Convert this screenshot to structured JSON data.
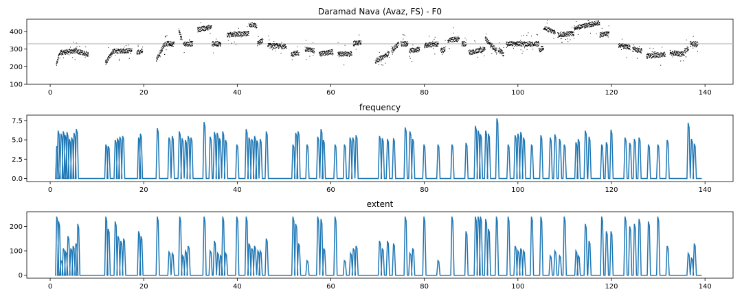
{
  "chart_data": [
    {
      "type": "scatter",
      "title": "Daramad Nava (Avaz, FS) - F0",
      "xlabel": "",
      "ylabel": "",
      "xlim": [
        -5,
        146
      ],
      "ylim": [
        100,
        470
      ],
      "xticks": [
        0,
        20,
        40,
        60,
        80,
        100,
        120,
        140
      ],
      "yticks": [
        100,
        200,
        300,
        400
      ],
      "reference_line": 330,
      "reference_line_color": "#bbbbbb",
      "point_color": "#000000",
      "series": [
        {
          "segments": [
            [
              1.3,
              210,
              2.2,
              290,
              1
            ],
            [
              2.2,
              280,
              5.5,
              290,
              1
            ],
            [
              5.5,
              290,
              8.2,
              270,
              1
            ],
            [
              11.8,
              220,
              13.5,
              290,
              1
            ],
            [
              13.5,
              290,
              17.5,
              290,
              1
            ],
            [
              18.5,
              280,
              19.8,
              290,
              1
            ],
            [
              22.7,
              240,
              24.5,
              330,
              1
            ],
            [
              24.5,
              330,
              26.5,
              330,
              1
            ],
            [
              27.5,
              410,
              28.2,
              350,
              1
            ],
            [
              28.5,
              330,
              30.5,
              330,
              1
            ],
            [
              31.5,
              410,
              34.5,
              425,
              1
            ],
            [
              34.6,
              330,
              36.5,
              330,
              1
            ],
            [
              37.8,
              380,
              42.5,
              390,
              1
            ],
            [
              42.5,
              440,
              44.2,
              430,
              1
            ],
            [
              44.3,
              330,
              45.5,
              350,
              1
            ],
            [
              46.5,
              320,
              50.5,
              315,
              1
            ],
            [
              51.5,
              270,
              53.2,
              280,
              1
            ],
            [
              54.5,
              300,
              56.5,
              290,
              1
            ],
            [
              57.5,
              270,
              60.5,
              285,
              1
            ],
            [
              61.5,
              270,
              64.5,
              275,
              1
            ],
            [
              64.8,
              330,
              66.5,
              340,
              1
            ],
            [
              69.5,
              230,
              72.5,
              275,
              1
            ],
            [
              73,
              290,
              74.5,
              330,
              1
            ],
            [
              75,
              330,
              76.5,
              330,
              1
            ],
            [
              76.8,
              290,
              79,
              300,
              1
            ],
            [
              80,
              320,
              83,
              330,
              1
            ],
            [
              83.5,
              290,
              84.5,
              300,
              1
            ],
            [
              85,
              350,
              87.5,
              360,
              1
            ],
            [
              88,
              330,
              89,
              330,
              1
            ],
            [
              89.5,
              280,
              93,
              300,
              1
            ],
            [
              93,
              360,
              95.5,
              290,
              1
            ],
            [
              95.8,
              300,
              97,
              270,
              1
            ],
            [
              97.5,
              330,
              99.5,
              330,
              1
            ],
            [
              99.5,
              330,
              102.5,
              330,
              1
            ],
            [
              102.5,
              330,
              104.5,
              330,
              1
            ],
            [
              104.5,
              290,
              105.5,
              310,
              1
            ],
            [
              105.5,
              420,
              108,
              395,
              1
            ],
            [
              108.5,
              380,
              112,
              390,
              1
            ],
            [
              112,
              420,
              117.5,
              450,
              1
            ],
            [
              117.5,
              380,
              119.5,
              390,
              1
            ],
            [
              121.5,
              320,
              124,
              310,
              1
            ],
            [
              124.5,
              300,
              126.5,
              290,
              1
            ],
            [
              127.5,
              260,
              131.5,
              270,
              1
            ],
            [
              132.5,
              280,
              135.5,
              270,
              1
            ],
            [
              135.6,
              290,
              136.5,
              300,
              1
            ],
            [
              136.8,
              330,
              138.5,
              330,
              1
            ]
          ]
        }
      ]
    },
    {
      "type": "line",
      "title": "frequency",
      "xlabel": "",
      "ylabel": "",
      "xlim": [
        -5,
        146
      ],
      "ylim": [
        -0.4,
        8.2
      ],
      "xticks": [
        0,
        20,
        40,
        60,
        80,
        100,
        120,
        140
      ],
      "xtick_labels": [
        "0",
        "20",
        "40",
        "60",
        "80",
        "100",
        "120",
        "140"
      ],
      "yticks": [
        0.0,
        2.5,
        5.0,
        7.5
      ],
      "ytick_labels": [
        "0.0",
        "2.5",
        "5.0",
        "7.5"
      ],
      "color": "#1f77b4",
      "x_start": 1.3,
      "x_end": 139.3,
      "baseline": 0,
      "spikes": [
        [
          1.5,
          4.2
        ],
        [
          1.8,
          6.2
        ],
        [
          2.4,
          5.8
        ],
        [
          2.9,
          6.1
        ],
        [
          3.3,
          5.6
        ],
        [
          3.7,
          6.0
        ],
        [
          4.2,
          5.1
        ],
        [
          4.7,
          5.3
        ],
        [
          5.2,
          5.9
        ],
        [
          5.7,
          6.4
        ],
        [
          12.0,
          4.4
        ],
        [
          12.5,
          4.2
        ],
        [
          14.0,
          5.0
        ],
        [
          14.5,
          5.2
        ],
        [
          15.0,
          5.4
        ],
        [
          15.6,
          5.5
        ],
        [
          19.0,
          5.3
        ],
        [
          19.4,
          5.8
        ],
        [
          23.0,
          6.5
        ],
        [
          25.5,
          5.3
        ],
        [
          26.2,
          5.5
        ],
        [
          27.7,
          6.1
        ],
        [
          28.3,
          5.2
        ],
        [
          29.0,
          5.0
        ],
        [
          29.6,
          5.5
        ],
        [
          30.2,
          5.3
        ],
        [
          33.0,
          7.3
        ],
        [
          34.3,
          5.4
        ],
        [
          35.2,
          6.0
        ],
        [
          35.8,
          5.9
        ],
        [
          36.3,
          5.2
        ],
        [
          37.0,
          6.1
        ],
        [
          37.6,
          5.0
        ],
        [
          40.0,
          4.4
        ],
        [
          42.0,
          6.4
        ],
        [
          42.6,
          5.3
        ],
        [
          43.2,
          5.1
        ],
        [
          43.8,
          5.5
        ],
        [
          44.3,
          4.9
        ],
        [
          45.0,
          5.1
        ],
        [
          46.3,
          6.1
        ],
        [
          52.0,
          4.4
        ],
        [
          52.6,
          5.9
        ],
        [
          53.1,
          6.1
        ],
        [
          55.0,
          4.4
        ],
        [
          57.3,
          5.4
        ],
        [
          58.0,
          6.4
        ],
        [
          58.5,
          5.0
        ],
        [
          61.0,
          4.4
        ],
        [
          63.0,
          4.4
        ],
        [
          64.2,
          5.3
        ],
        [
          64.8,
          5.3
        ],
        [
          65.5,
          5.6
        ],
        [
          70.5,
          5.5
        ],
        [
          71.1,
          5.2
        ],
        [
          72.2,
          5.1
        ],
        [
          73.5,
          5.2
        ],
        [
          76.0,
          6.6
        ],
        [
          77.0,
          6.1
        ],
        [
          77.6,
          5.1
        ],
        [
          80.0,
          4.4
        ],
        [
          83.0,
          4.4
        ],
        [
          86.0,
          4.4
        ],
        [
          89.0,
          4.6
        ],
        [
          91.0,
          6.8
        ],
        [
          91.6,
          6.2
        ],
        [
          92.1,
          5.7
        ],
        [
          93.2,
          6.2
        ],
        [
          93.8,
          5.8
        ],
        [
          95.6,
          7.8
        ],
        [
          98.0,
          4.4
        ],
        [
          99.5,
          5.6
        ],
        [
          100.1,
          5.8
        ],
        [
          100.7,
          6.0
        ],
        [
          101.3,
          5.3
        ],
        [
          103.0,
          4.4
        ],
        [
          105.0,
          5.6
        ],
        [
          107.0,
          5.3
        ],
        [
          108.0,
          5.7
        ],
        [
          109.0,
          5.1
        ],
        [
          110.0,
          4.4
        ],
        [
          112.5,
          4.7
        ],
        [
          113.0,
          5.1
        ],
        [
          114.5,
          6.2
        ],
        [
          115.3,
          5.4
        ],
        [
          118.0,
          4.4
        ],
        [
          119.0,
          4.7
        ],
        [
          120.0,
          6.3
        ],
        [
          123.0,
          5.3
        ],
        [
          124.0,
          4.6
        ],
        [
          125.0,
          5.1
        ],
        [
          126.0,
          5.3
        ],
        [
          128.0,
          4.4
        ],
        [
          130.0,
          4.4
        ],
        [
          132.0,
          5.0
        ],
        [
          136.5,
          7.2
        ],
        [
          137.2,
          5.1
        ],
        [
          137.8,
          4.5
        ]
      ]
    },
    {
      "type": "line",
      "title": "extent",
      "xlabel": "",
      "ylabel": "",
      "xlim": [
        -5,
        146
      ],
      "ylim": [
        -12,
        260
      ],
      "xticks": [
        0,
        20,
        40,
        60,
        80,
        100,
        120,
        140
      ],
      "xtick_labels": [
        "0",
        "20",
        "40",
        "60",
        "80",
        "100",
        "120",
        "140"
      ],
      "yticks": [
        0,
        100,
        200
      ],
      "ytick_labels": [
        "0",
        "100",
        "200"
      ],
      "color": "#1f77b4",
      "x_start": 1.3,
      "x_end": 139.3,
      "baseline": 0,
      "spikes": [
        [
          1.5,
          240
        ],
        [
          1.9,
          220
        ],
        [
          2.4,
          60
        ],
        [
          2.9,
          110
        ],
        [
          3.4,
          95
        ],
        [
          3.9,
          160
        ],
        [
          4.5,
          110
        ],
        [
          5.0,
          120
        ],
        [
          5.6,
          130
        ],
        [
          6.0,
          210
        ],
        [
          12.0,
          240
        ],
        [
          12.5,
          190
        ],
        [
          14.0,
          220
        ],
        [
          14.6,
          160
        ],
        [
          15.2,
          140
        ],
        [
          15.8,
          150
        ],
        [
          19.0,
          180
        ],
        [
          19.5,
          160
        ],
        [
          23.0,
          240
        ],
        [
          25.5,
          95
        ],
        [
          26.2,
          90
        ],
        [
          27.8,
          240
        ],
        [
          28.4,
          80
        ],
        [
          29.0,
          100
        ],
        [
          29.6,
          120
        ],
        [
          33.0,
          240
        ],
        [
          34.3,
          100
        ],
        [
          35.2,
          140
        ],
        [
          35.9,
          90
        ],
        [
          36.5,
          80
        ],
        [
          37.0,
          240
        ],
        [
          37.6,
          90
        ],
        [
          40.0,
          240
        ],
        [
          42.0,
          240
        ],
        [
          42.6,
          130
        ],
        [
          43.2,
          110
        ],
        [
          43.8,
          120
        ],
        [
          44.5,
          100
        ],
        [
          45.0,
          100
        ],
        [
          46.3,
          150
        ],
        [
          52.0,
          240
        ],
        [
          52.6,
          210
        ],
        [
          53.2,
          130
        ],
        [
          55.0,
          60
        ],
        [
          57.3,
          240
        ],
        [
          58.0,
          230
        ],
        [
          58.6,
          110
        ],
        [
          61.0,
          240
        ],
        [
          63.0,
          60
        ],
        [
          64.3,
          90
        ],
        [
          64.9,
          110
        ],
        [
          65.5,
          120
        ],
        [
          70.5,
          140
        ],
        [
          71.1,
          110
        ],
        [
          72.2,
          140
        ],
        [
          73.5,
          130
        ],
        [
          76.0,
          240
        ],
        [
          77.0,
          90
        ],
        [
          77.6,
          110
        ],
        [
          80.0,
          240
        ],
        [
          83.0,
          60
        ],
        [
          86.0,
          240
        ],
        [
          89.0,
          180
        ],
        [
          91.0,
          240
        ],
        [
          91.6,
          240
        ],
        [
          92.1,
          240
        ],
        [
          93.2,
          230
        ],
        [
          93.8,
          190
        ],
        [
          95.5,
          240
        ],
        [
          98.0,
          240
        ],
        [
          99.5,
          120
        ],
        [
          100.1,
          100
        ],
        [
          100.7,
          110
        ],
        [
          101.3,
          100
        ],
        [
          103.0,
          240
        ],
        [
          105.0,
          240
        ],
        [
          107.0,
          80
        ],
        [
          108.0,
          100
        ],
        [
          109.0,
          80
        ],
        [
          110.0,
          240
        ],
        [
          112.5,
          100
        ],
        [
          113.0,
          80
        ],
        [
          114.5,
          210
        ],
        [
          115.3,
          140
        ],
        [
          118.0,
          240
        ],
        [
          119.0,
          180
        ],
        [
          120.0,
          180
        ],
        [
          123.0,
          240
        ],
        [
          124.0,
          200
        ],
        [
          125.0,
          210
        ],
        [
          126.0,
          230
        ],
        [
          128.0,
          220
        ],
        [
          130.0,
          240
        ],
        [
          132.0,
          120
        ],
        [
          136.5,
          90
        ],
        [
          137.2,
          70
        ],
        [
          137.8,
          130
        ]
      ]
    }
  ]
}
